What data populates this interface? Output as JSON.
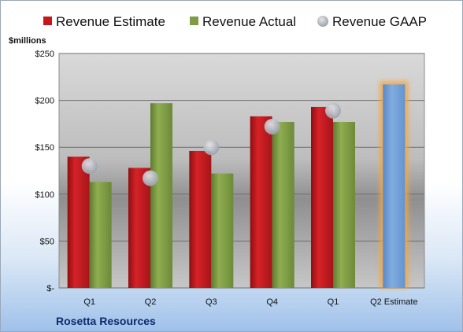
{
  "chart_data": {
    "type": "bar",
    "company": "Rosetta Resources",
    "ylabel": "$millions",
    "ylim": [
      0,
      250
    ],
    "yticks": [
      0,
      50,
      100,
      150,
      200,
      250
    ],
    "ytick_labels": [
      "$-",
      "$50",
      "$100",
      "$150",
      "$200",
      "$250"
    ],
    "grid": true,
    "legend_position": "top",
    "categories": [
      "Q1",
      "Q2",
      "Q3",
      "Q4",
      "Q1",
      "Q2 Estimate"
    ],
    "series": [
      {
        "name": "Revenue Estimate",
        "kind": "bar",
        "color": "#c3191d",
        "values": [
          140,
          128,
          146,
          183,
          193,
          null
        ]
      },
      {
        "name": "Revenue Actual",
        "kind": "bar",
        "color": "#7f9c45",
        "values": [
          113,
          197,
          122,
          177,
          177,
          null
        ]
      },
      {
        "name": "Revenue GAAP",
        "kind": "marker",
        "color": "#b8bcc4",
        "values": [
          130,
          117,
          150,
          172,
          189,
          null
        ]
      },
      {
        "name": "Q2 Estimate",
        "kind": "highlight-bar",
        "color": "#6f9fd6",
        "glow": "#f5a640",
        "values": [
          null,
          null,
          null,
          null,
          null,
          217
        ]
      }
    ]
  }
}
